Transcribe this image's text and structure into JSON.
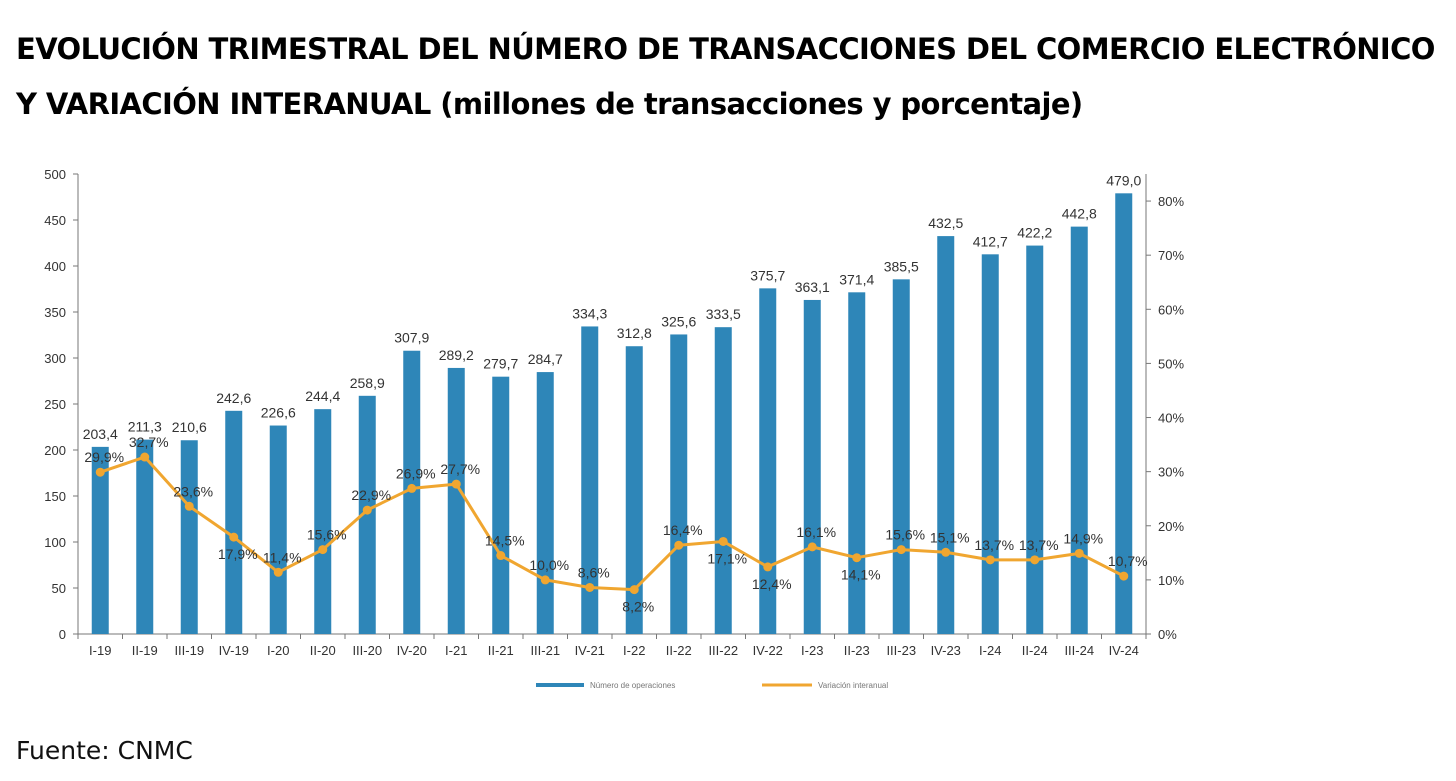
{
  "title_main": "EVOLUCIÓN TRIMESTRAL DEL NÚMERO DE TRANSACCIONES DEL COMERCIO ELECTRÓNICO Y VARIACIÓN INTERANUAL",
  "title_sub": "(millones de transacciones y porcentaje)",
  "source": "Fuente: CNMC",
  "colors": {
    "bar": "#2e86b8",
    "line": "#f0a630",
    "axis": "#777777"
  },
  "chart_data": {
    "type": "bar",
    "categories": [
      "I-19",
      "II-19",
      "III-19",
      "IV-19",
      "I-20",
      "II-20",
      "III-20",
      "IV-20",
      "I-21",
      "II-21",
      "III-21",
      "IV-21",
      "I-22",
      "II-22",
      "III-22",
      "IV-22",
      "I-23",
      "II-23",
      "III-23",
      "IV-23",
      "I-24",
      "II-24",
      "III-24",
      "IV-24"
    ],
    "series": [
      {
        "name": "Número de operaciones",
        "type": "bar",
        "axis": "left",
        "values": [
          203.4,
          211.3,
          210.6,
          242.6,
          226.6,
          244.4,
          258.9,
          307.9,
          289.2,
          279.7,
          284.7,
          334.3,
          312.8,
          325.6,
          333.5,
          375.7,
          363.1,
          371.4,
          385.5,
          432.5,
          412.7,
          422.2,
          442.8,
          479.0
        ],
        "labels": [
          "203,4",
          "211,3",
          "210,6",
          "242,6",
          "226,6",
          "244,4",
          "258,9",
          "307,9",
          "289,2",
          "279,7",
          "284,7",
          "334,3",
          "312,8",
          "325,6",
          "333,5",
          "375,7",
          "363,1",
          "371,4",
          "385,5",
          "432,5",
          "412,7",
          "422,2",
          "442,8",
          "479,0"
        ]
      },
      {
        "name": "Variación interanual",
        "type": "line",
        "axis": "right",
        "values": [
          29.9,
          32.7,
          23.6,
          17.9,
          11.4,
          15.6,
          22.9,
          26.9,
          27.7,
          14.5,
          10.0,
          8.6,
          8.2,
          16.4,
          17.1,
          12.4,
          16.1,
          14.1,
          15.6,
          15.1,
          13.7,
          13.7,
          14.9,
          10.7
        ],
        "labels": [
          "29,9%",
          "32,7%",
          "23,6%",
          "17,9%",
          "11,4%",
          "15,6%",
          "22,9%",
          "26,9%",
          "27,7%",
          "14,5%",
          "10,0%",
          "8,6%",
          "8,2%",
          "16,4%",
          "17,1%",
          "12,4%",
          "16,1%",
          "14,1%",
          "15,6%",
          "15,1%",
          "13,7%",
          "13,7%",
          "14,9%",
          "10,7%"
        ]
      }
    ],
    "y_left": {
      "range": [
        0,
        500
      ],
      "ticks": [
        "0",
        "50",
        "100",
        "150",
        "200",
        "250",
        "300",
        "350",
        "400",
        "450",
        "500"
      ]
    },
    "y_right": {
      "range": [
        0,
        85
      ],
      "ticks": [
        "0%",
        "10%",
        "20%",
        "30%",
        "40%",
        "50%",
        "60%",
        "70%",
        "80%"
      ]
    },
    "legend": {
      "position": "bottom",
      "entries": [
        "Número de operaciones",
        "Variación interanual"
      ]
    }
  }
}
